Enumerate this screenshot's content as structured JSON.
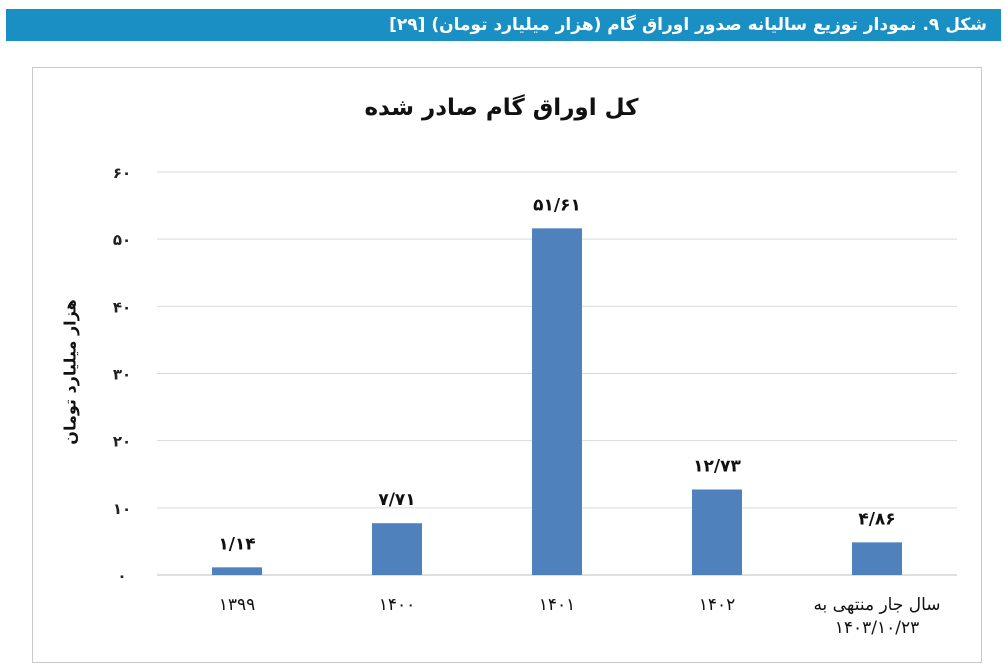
{
  "header": {
    "title": "شکل ۹. نمودار توزیع سالیانه صدور اوراق گام (هزار میلیارد تومان) [۲۹]"
  },
  "chart_data": {
    "type": "bar",
    "title": "کل اوراق گام صادر شده",
    "ylabel": "هزار میلیارد تومان",
    "xlabel": "",
    "categories": [
      "۱۳۹۹",
      "۱۴۰۰",
      "۱۴۰۱",
      "۱۴۰۲",
      "سال جار منتهی به ۱۴۰۳/۱۰/۲۳"
    ],
    "category_lines": [
      [
        "۱۳۹۹"
      ],
      [
        "۱۴۰۰"
      ],
      [
        "۱۴۰۱"
      ],
      [
        "۱۴۰۲"
      ],
      [
        "سال جار منتهی به",
        "۱۴۰۳/۱۰/۲۳"
      ]
    ],
    "values": [
      1.14,
      7.71,
      51.61,
      12.73,
      4.86
    ],
    "data_labels": [
      "۱/۱۴",
      "۷/۷۱",
      "۵۱/۶۱",
      "۱۲/۷۳",
      "۴/۸۶"
    ],
    "yticks": [
      0,
      10,
      20,
      30,
      40,
      50,
      60
    ],
    "ytick_labels": [
      "۰",
      "۱۰",
      "۲۰",
      "۳۰",
      "۴۰",
      "۵۰",
      "۶۰"
    ],
    "ylim": [
      0,
      60
    ],
    "grid": true,
    "bar_color": "#4f81bd",
    "grid_color": "#d9d9d9"
  }
}
